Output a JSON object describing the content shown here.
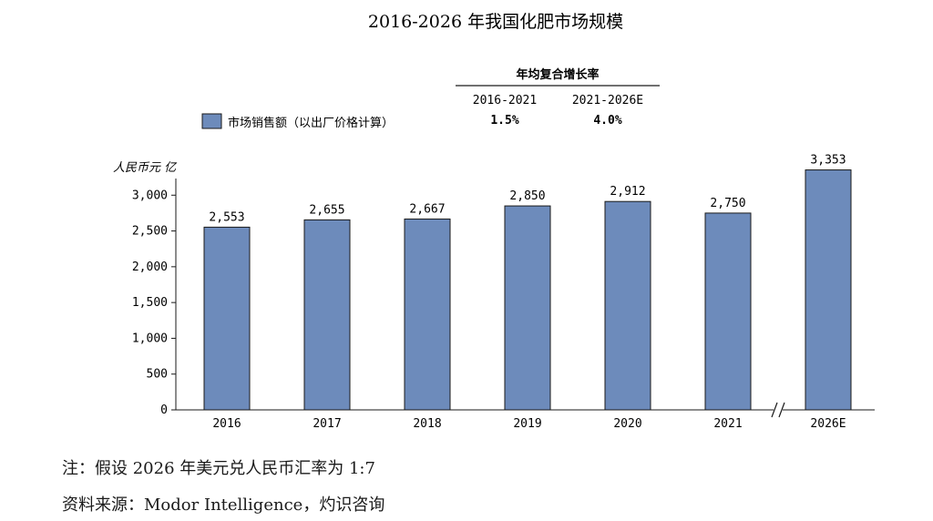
{
  "chart_data": {
    "type": "bar",
    "title": "2016-2026 年我国化肥市场规模",
    "ylabel": "人民币元 亿",
    "categories": [
      "2016",
      "2017",
      "2018",
      "2019",
      "2020",
      "2021",
      "2026E"
    ],
    "series": [
      {
        "name": "市场销售额（以出厂价格计算）",
        "values": [
          2553,
          2655,
          2667,
          2850,
          2912,
          2750,
          3353
        ],
        "labels": [
          "2,553",
          "2,655",
          "2,667",
          "2,850",
          "2,912",
          "2,750",
          "3,353"
        ]
      }
    ],
    "ylim": [
      0,
      3500
    ],
    "yticks": [
      0,
      500,
      1000,
      1500,
      2000,
      2500,
      3000
    ],
    "ytick_labels": [
      "0",
      "500",
      "1,000",
      "1,500",
      "2,000",
      "2,500",
      "3,000"
    ],
    "axis_break_before": "2026E",
    "bar_color": "#6d8bbb",
    "grid": false,
    "legend_position": "top-left"
  },
  "cagr": {
    "header": "年均复合增长率",
    "columns": [
      {
        "period": "2016-2021",
        "value": "1.5%"
      },
      {
        "period": "2021-2026E",
        "value": "4.0%"
      }
    ]
  },
  "notes": {
    "note": "注：假设 2026 年美元兑人民币汇率为 1:7",
    "source": "资料来源：Modor Intelligence，灼识咨询"
  }
}
